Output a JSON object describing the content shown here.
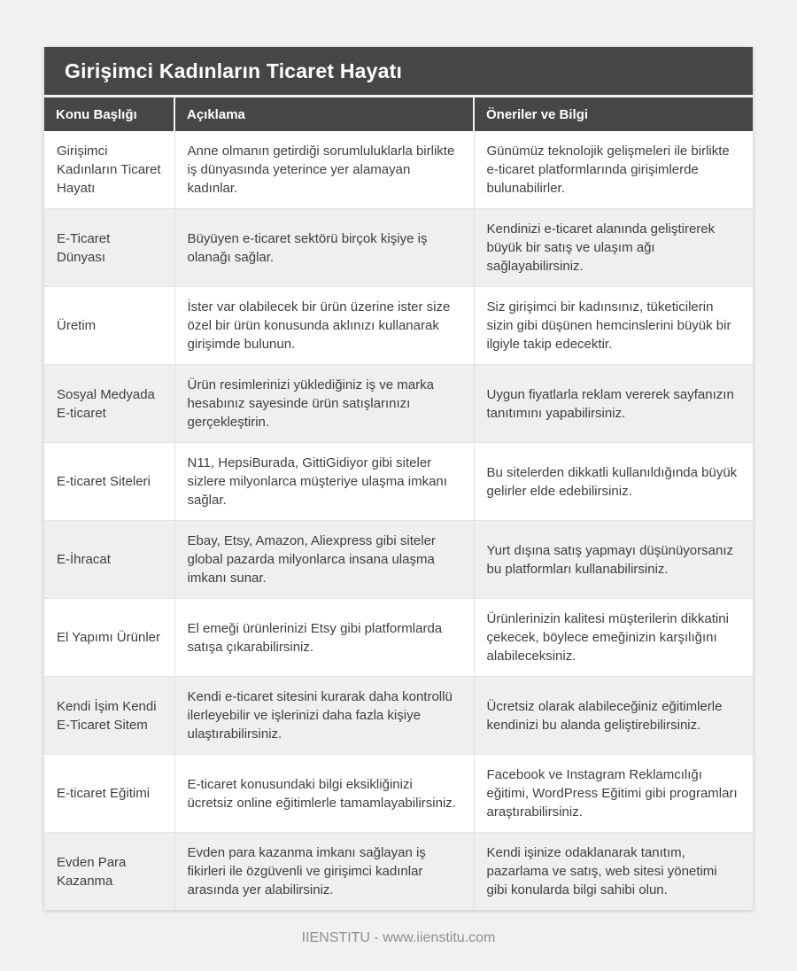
{
  "page": {
    "title": "Girişimci Kadınların Ticaret Hayatı",
    "footer": "IIENSTITU - www.iienstitu.com"
  },
  "table": {
    "columns": [
      "Konu Başlığı",
      "Açıklama",
      "Öneriler ve Bilgi"
    ],
    "rows": [
      {
        "topic": "Girişimci Kadınların Ticaret Hayatı",
        "description": "Anne olmanın getirdiği sorumluluklarla birlikte iş dünyasında yeterince yer alamayan kadınlar.",
        "suggestion": "Günümüz teknolojik gelişmeleri ile birlikte e-ticaret platformlarında girişimlerde bulunabilirler."
      },
      {
        "topic": "E-Ticaret Dünyası",
        "description": "Büyüyen e-ticaret sektörü birçok kişiye iş olanağı sağlar.",
        "suggestion": "Kendinizi e-ticaret alanında geliştirerek büyük bir satış ve ulaşım ağı sağlayabilirsiniz."
      },
      {
        "topic": "Üretim",
        "description": "İster var olabilecek bir ürün üzerine ister size özel bir ürün konusunda aklınızı kullanarak girişimde bulunun.",
        "suggestion": "Siz girişimci bir kadınsınız, tüketicilerin sizin gibi düşünen hemcinslerini büyük bir ilgiyle takip edecektir."
      },
      {
        "topic": "Sosyal Medyada E-ticaret",
        "description": "Ürün resimlerinizi yüklediğiniz iş ve marka hesabınız sayesinde ürün satışlarınızı gerçekleştirin.",
        "suggestion": "Uygun fiyatlarla reklam vererek sayfanızın tanıtımını yapabilirsiniz."
      },
      {
        "topic": "E-ticaret Siteleri",
        "description": "N11, HepsiBurada, GittiGidiyor gibi siteler sizlere milyonlarca müşteriye ulaşma imkanı sağlar.",
        "suggestion": "Bu sitelerden dikkatli kullanıldığında büyük gelirler elde edebilirsiniz."
      },
      {
        "topic": "E-İhracat",
        "description": "Ebay, Etsy, Amazon, Aliexpress gibi siteler global pazarda milyonlarca insana ulaşma imkanı sunar.",
        "suggestion": "Yurt dışına satış yapmayı düşünüyorsanız bu platformları kullanabilirsiniz."
      },
      {
        "topic": "El Yapımı Ürünler",
        "description": "El emeği ürünlerinizi Etsy gibi platformlarda satışa çıkarabilirsiniz.",
        "suggestion": "Ürünlerinizin kalitesi müşterilerin dikkatini çekecek, böylece emeğinizin karşılığını alabileceksiniz."
      },
      {
        "topic": "Kendi İşim Kendi E-Ticaret Sitem",
        "description": "Kendi e-ticaret sitesini kurarak daha kontrollü ilerleyebilir ve işlerinizi daha fazla kişiye ulaştırabilirsiniz.",
        "suggestion": "Ücretsiz olarak alabileceğiniz eğitimlerle kendinizi bu alanda geliştirebilirsiniz."
      },
      {
        "topic": "E-ticaret Eğitimi",
        "description": "E-ticaret konusundaki bilgi eksikliğinizi ücretsiz online eğitimlerle tamamlayabilirsiniz.",
        "suggestion": "Facebook ve Instagram Reklamcılığı eğitimi, WordPress Eğitimi gibi programları araştırabilirsiniz."
      },
      {
        "topic": "Evden Para Kazanma",
        "description": "Evden para kazanma imkanı sağlayan iş fikirleri ile özgüvenli ve girişimci kadınlar arasında yer alabilirsiniz.",
        "suggestion": "Kendi işinize odaklanarak tanıtım, pazarlama ve satış, web sitesi yönetimi gibi konularda bilgi sahibi olun."
      }
    ]
  },
  "colors": {
    "page_bg": "#f1f1f2",
    "header_bg": "#464646",
    "header_text": "#ffffff",
    "row_alt_bg": "#efefef",
    "body_text": "#3f3f3f",
    "border": "#e3e3e3",
    "divider_light": "#f1f1f1",
    "footer_text": "#8f8f8f"
  }
}
